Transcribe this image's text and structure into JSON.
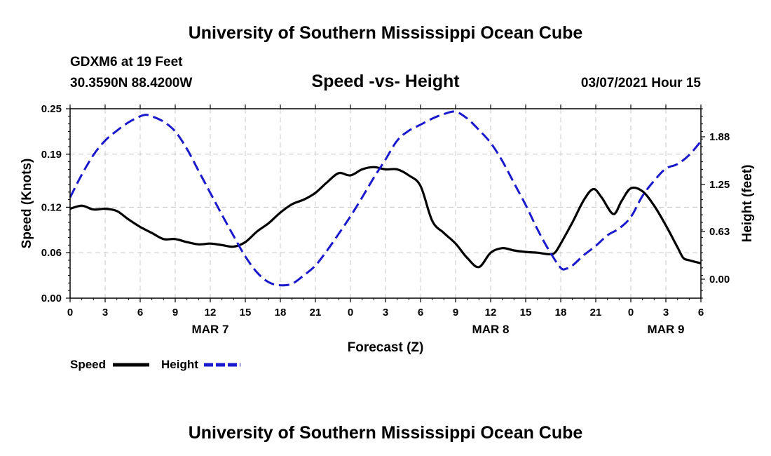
{
  "header": {
    "title": "University of Southern Mississippi Ocean Cube",
    "station": "GDXM6 at 19 Feet",
    "coords": "30.3590N 88.4200W",
    "subtitle": "Speed -vs- Height",
    "date": "03/07/2021 Hour 15"
  },
  "footer": {
    "title": "University of Southern Mississippi Ocean Cube"
  },
  "chart_data": {
    "type": "line",
    "title": "Speed -vs- Height",
    "xlabel": "Forecast (Z)",
    "ylabel": "Speed (Knots)",
    "y2label": "Height (feet)",
    "x_unit": "forecast hours from 0Z Mar 7",
    "xlim": [
      0,
      54
    ],
    "ylim": [
      0,
      0.25
    ],
    "y2lim": [
      -0.25,
      2.25
    ],
    "grid": true,
    "legend_position": "bottom-left",
    "x_ticks": [
      {
        "x": 0,
        "label": "0"
      },
      {
        "x": 3,
        "label": "3"
      },
      {
        "x": 6,
        "label": "6"
      },
      {
        "x": 9,
        "label": "9"
      },
      {
        "x": 12,
        "label": "12"
      },
      {
        "x": 15,
        "label": "15"
      },
      {
        "x": 18,
        "label": "18"
      },
      {
        "x": 21,
        "label": "21"
      },
      {
        "x": 24,
        "label": "0"
      },
      {
        "x": 27,
        "label": "3"
      },
      {
        "x": 30,
        "label": "6"
      },
      {
        "x": 33,
        "label": "9"
      },
      {
        "x": 36,
        "label": "12"
      },
      {
        "x": 39,
        "label": "15"
      },
      {
        "x": 42,
        "label": "18"
      },
      {
        "x": 45,
        "label": "21"
      },
      {
        "x": 48,
        "label": "0"
      },
      {
        "x": 51,
        "label": "3"
      },
      {
        "x": 54,
        "label": "6"
      }
    ],
    "date_labels": [
      {
        "x": 12,
        "label": "MAR 7"
      },
      {
        "x": 36,
        "label": "MAR 8"
      },
      {
        "x": 51,
        "label": "MAR 9"
      }
    ],
    "y_ticks": [
      {
        "v": 0,
        "label": "0.00"
      },
      {
        "v": 0.06,
        "label": "0.06"
      },
      {
        "v": 0.12,
        "label": "0.12"
      },
      {
        "v": 0.19,
        "label": "0.19"
      },
      {
        "v": 0.25,
        "label": "0.25"
      }
    ],
    "y2_ticks": [
      {
        "v": 0,
        "label": "0.00"
      },
      {
        "v": 0.63,
        "label": "0.63"
      },
      {
        "v": 1.25,
        "label": "1.25"
      },
      {
        "v": 1.88,
        "label": "1.88"
      }
    ],
    "series": [
      {
        "name": "Speed",
        "axis": "left",
        "color": "#000000",
        "dash": "solid",
        "points": [
          [
            0,
            0.118
          ],
          [
            1,
            0.122
          ],
          [
            2,
            0.117
          ],
          [
            3,
            0.118
          ],
          [
            4,
            0.115
          ],
          [
            5,
            0.104
          ],
          [
            6,
            0.094
          ],
          [
            7,
            0.086
          ],
          [
            8,
            0.078
          ],
          [
            9,
            0.078
          ],
          [
            10,
            0.074
          ],
          [
            11,
            0.071
          ],
          [
            12,
            0.072
          ],
          [
            13,
            0.07
          ],
          [
            14,
            0.068
          ],
          [
            15,
            0.074
          ],
          [
            16,
            0.088
          ],
          [
            17,
            0.099
          ],
          [
            18,
            0.113
          ],
          [
            19,
            0.124
          ],
          [
            20,
            0.13
          ],
          [
            21,
            0.139
          ],
          [
            22,
            0.153
          ],
          [
            23,
            0.165
          ],
          [
            24,
            0.162
          ],
          [
            25,
            0.17
          ],
          [
            26,
            0.173
          ],
          [
            27,
            0.17
          ],
          [
            28,
            0.17
          ],
          [
            29,
            0.162
          ],
          [
            30,
            0.148
          ],
          [
            31,
            0.102
          ],
          [
            32,
            0.086
          ],
          [
            33,
            0.072
          ],
          [
            34,
            0.053
          ],
          [
            35,
            0.041
          ],
          [
            36,
            0.06
          ],
          [
            37,
            0.066
          ],
          [
            38,
            0.063
          ],
          [
            39,
            0.061
          ],
          [
            40,
            0.06
          ],
          [
            41,
            0.058
          ],
          [
            41.5,
            0.06
          ],
          [
            42,
            0.072
          ],
          [
            43,
            0.1
          ],
          [
            44,
            0.13
          ],
          [
            44.8,
            0.144
          ],
          [
            45.5,
            0.133
          ],
          [
            46.5,
            0.111
          ],
          [
            47.2,
            0.128
          ],
          [
            48,
            0.145
          ],
          [
            49,
            0.141
          ],
          [
            50,
            0.122
          ],
          [
            51,
            0.096
          ],
          [
            52,
            0.067
          ],
          [
            52.5,
            0.053
          ],
          [
            53,
            0.05
          ],
          [
            54,
            0.046
          ]
        ]
      },
      {
        "name": "Height",
        "axis": "right",
        "color": "#1a1acc",
        "dash": "dashed",
        "points": [
          [
            0,
            1.08
          ],
          [
            1,
            1.38
          ],
          [
            2,
            1.64
          ],
          [
            3,
            1.83
          ],
          [
            4,
            1.96
          ],
          [
            5,
            2.07
          ],
          [
            6,
            2.15
          ],
          [
            6.5,
            2.17
          ],
          [
            7,
            2.15
          ],
          [
            8,
            2.08
          ],
          [
            9,
            1.95
          ],
          [
            10,
            1.72
          ],
          [
            11,
            1.43
          ],
          [
            12,
            1.14
          ],
          [
            13,
            0.85
          ],
          [
            14,
            0.57
          ],
          [
            15,
            0.3
          ],
          [
            16,
            0.09
          ],
          [
            17,
            -0.04
          ],
          [
            18,
            -0.08
          ],
          [
            19,
            -0.06
          ],
          [
            20,
            0.05
          ],
          [
            21,
            0.18
          ],
          [
            22,
            0.38
          ],
          [
            23,
            0.6
          ],
          [
            24,
            0.83
          ],
          [
            25,
            1.08
          ],
          [
            26,
            1.34
          ],
          [
            27,
            1.58
          ],
          [
            28,
            1.83
          ],
          [
            29,
            1.96
          ],
          [
            30,
            2.04
          ],
          [
            31,
            2.12
          ],
          [
            32,
            2.18
          ],
          [
            33,
            2.21
          ],
          [
            34,
            2.12
          ],
          [
            35,
            1.97
          ],
          [
            36,
            1.8
          ],
          [
            37,
            1.56
          ],
          [
            38,
            1.27
          ],
          [
            39,
            0.98
          ],
          [
            40,
            0.66
          ],
          [
            41,
            0.38
          ],
          [
            42,
            0.15
          ],
          [
            42.5,
            0.14
          ],
          [
            43,
            0.18
          ],
          [
            44,
            0.32
          ],
          [
            45,
            0.44
          ],
          [
            46,
            0.58
          ],
          [
            47,
            0.67
          ],
          [
            48,
            0.82
          ],
          [
            49,
            1.1
          ],
          [
            50,
            1.3
          ],
          [
            51,
            1.46
          ],
          [
            52,
            1.52
          ],
          [
            53,
            1.64
          ],
          [
            54,
            1.82
          ]
        ]
      }
    ]
  }
}
